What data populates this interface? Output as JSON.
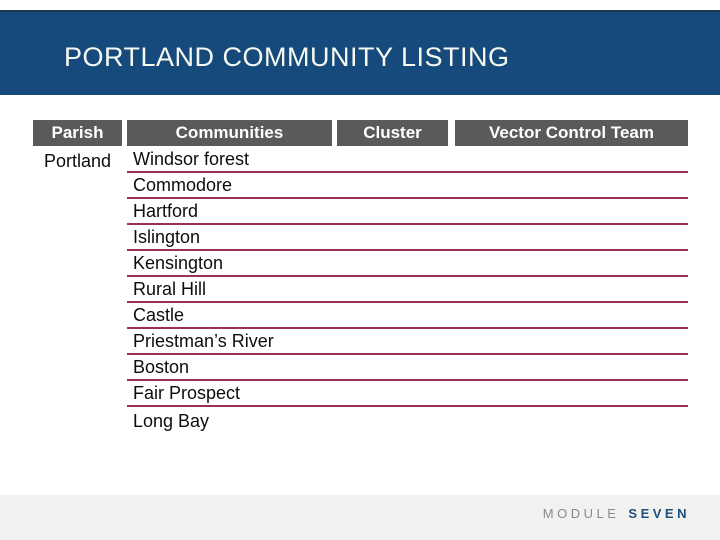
{
  "slide": {
    "title": "PORTLAND COMMUNITY LISTING"
  },
  "table": {
    "headers": [
      "Parish",
      "Communities",
      "Cluster",
      "Vector Control Team"
    ],
    "parish": "Portland",
    "communities": [
      "Windsor forest",
      "Commodore",
      "Hartford",
      "Islington",
      "Kensington",
      "Rural Hill",
      "Castle",
      "Priestman’s River",
      "Boston",
      "Fair Prospect",
      "Long Bay"
    ]
  },
  "footer": {
    "module_label": "MODULE",
    "module_value": "SEVEN"
  },
  "colors": {
    "title_bar_blue": "#16497C",
    "title_bar_top_edge": "#1B3A4F",
    "header_cell_gray": "#5A5A5A",
    "row_line_maroon": "#9A3054",
    "footer_bg": "#F1F1F0",
    "footer_label_gray": "#8A8A8A",
    "footer_value_blue": "#1F4E79"
  }
}
